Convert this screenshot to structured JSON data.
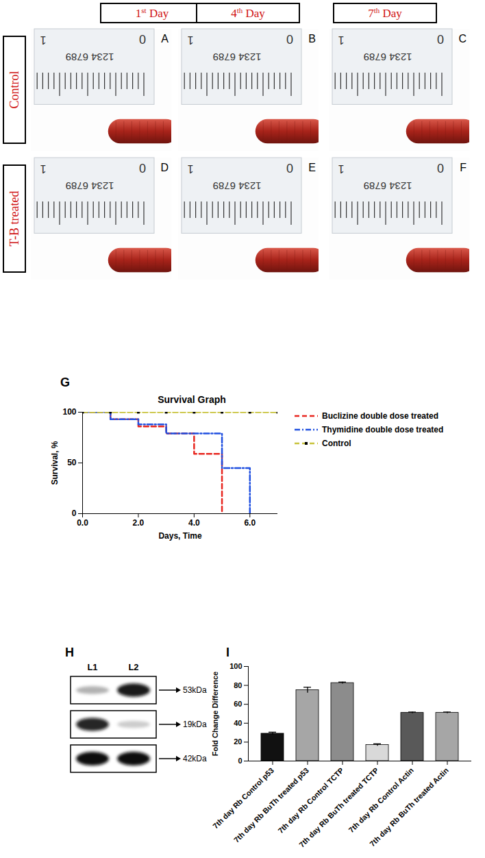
{
  "photo_panels": {
    "columns": [
      "1st Day",
      "4th Day",
      "7th Day"
    ],
    "rows": [
      "Control",
      "T-B treated"
    ],
    "letters": [
      [
        "A",
        "B",
        "C"
      ],
      [
        "D",
        "E",
        "F"
      ]
    ],
    "ruler_labels": {
      "left": "1",
      "right": "0",
      "digits": "1234 6789"
    }
  },
  "blot": {
    "panel_label": "H",
    "lanes": [
      "L1",
      "L2"
    ],
    "bands": [
      {
        "size": "53kDa",
        "intensity": [
          0.3,
          0.95
        ]
      },
      {
        "size": "19kDa",
        "intensity": [
          0.9,
          0.2
        ]
      },
      {
        "size": "42kDa",
        "intensity": [
          1,
          1
        ]
      }
    ]
  },
  "chart_data": [
    {
      "type": "line",
      "panel_label": "G",
      "title": "Survival Graph",
      "x_label": "Days, Time",
      "y_label": "Survival, %",
      "xlim": [
        0,
        7
      ],
      "xticks": [
        0,
        2,
        4,
        6
      ],
      "ylim": [
        0,
        100
      ],
      "yticks": [
        0,
        50,
        100
      ],
      "legend": "right",
      "series": [
        {
          "name": "Buclizine double dose treated",
          "color": "#e8261f",
          "line_style": "dashed",
          "x": [
            0,
            1,
            2,
            3,
            4,
            5
          ],
          "values": [
            100,
            93,
            86,
            79,
            59,
            0
          ]
        },
        {
          "name": "Thymidine double dose treated",
          "color": "#1f4fe0",
          "line_style": "dashdot",
          "x": [
            0,
            1,
            2,
            3,
            5,
            6
          ],
          "values": [
            100,
            93,
            88,
            79,
            45,
            0
          ]
        },
        {
          "name": "Control",
          "color": "#c8c23a",
          "line_style": "dashed",
          "marker": "square",
          "x": [
            0,
            1,
            2,
            3,
            4,
            5,
            6,
            7
          ],
          "values": [
            100,
            100,
            100,
            100,
            100,
            100,
            100,
            100
          ]
        }
      ]
    },
    {
      "type": "bar",
      "panel_label": "I",
      "y_label": "Fold Change Difference",
      "ylim": [
        0,
        100
      ],
      "yticks": [
        0,
        20,
        40,
        60,
        80,
        100
      ],
      "categories": [
        "7th day Rb Control p53",
        "7th day Rb BuTh treated p53",
        "7th day Rb Control TCTP",
        "7th day Rb BuTh treated TCTP",
        "7th day Rb Control Actin",
        "7th day Rb BuTh treated Actin"
      ],
      "values": [
        29,
        75,
        82.5,
        17,
        51,
        51
      ],
      "errors": [
        1.5,
        3,
        1,
        1.2,
        0.8,
        0.8
      ],
      "colors": [
        "#111111",
        "#a6a6a6",
        "#8c8c8c",
        "#d9d9d9",
        "#595959",
        "#a6a6a6"
      ]
    }
  ]
}
